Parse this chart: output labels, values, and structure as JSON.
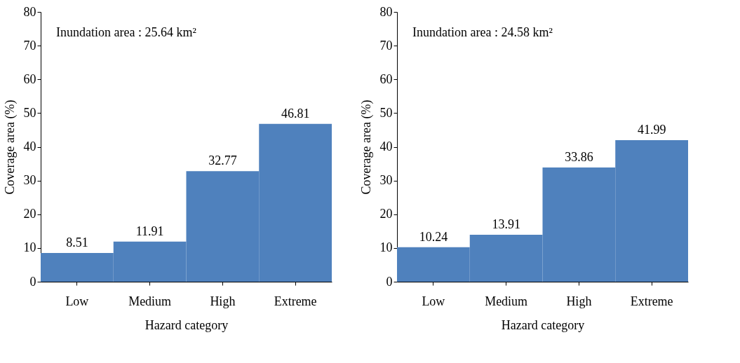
{
  "chart_data": [
    {
      "type": "bar",
      "categories": [
        "Low",
        "Medium",
        "High",
        "Extreme"
      ],
      "values": [
        8.51,
        11.91,
        32.77,
        46.81
      ],
      "color": "#4f81bd",
      "xlabel": "Hazard category",
      "ylabel": "Coverage area (%)",
      "ylim": [
        0,
        80
      ],
      "yticks": [
        0,
        10,
        20,
        30,
        40,
        50,
        60,
        70,
        80
      ],
      "annotations": [
        "Inundation area : 25.64 km²"
      ],
      "data_labels": true,
      "grid": false
    },
    {
      "type": "bar",
      "categories": [
        "Low",
        "Medium",
        "High",
        "Extreme"
      ],
      "values": [
        10.24,
        13.91,
        33.86,
        41.99
      ],
      "color": "#4f81bd",
      "xlabel": "Hazard category",
      "ylabel": "Coverage area (%)",
      "ylim": [
        0,
        80
      ],
      "yticks": [
        0,
        10,
        20,
        30,
        40,
        50,
        60,
        70,
        80
      ],
      "annotations": [
        "Inundation area : 24.58 km²"
      ],
      "data_labels": true,
      "grid": false
    }
  ]
}
